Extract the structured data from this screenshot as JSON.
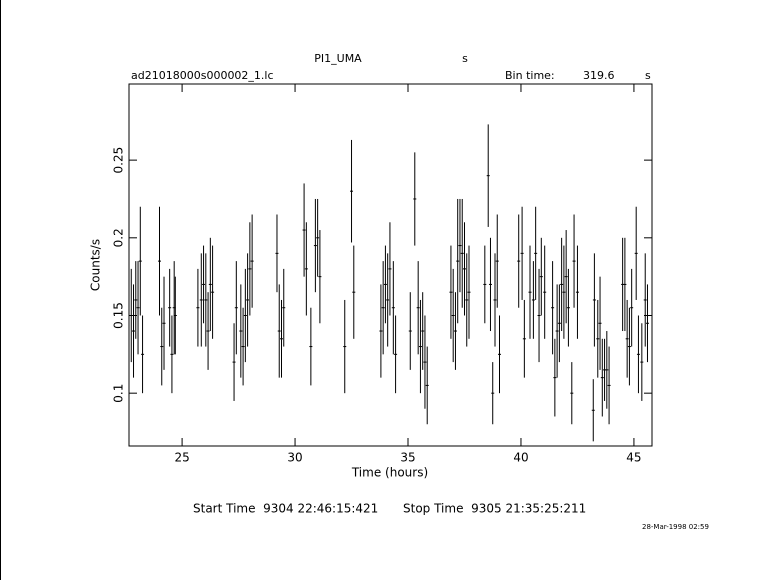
{
  "chart_data": {
    "type": "errorbar",
    "title": "PI1_UMA",
    "title_unit": "s",
    "file": "ad21018000s000002_1.lc",
    "bin_time_label": "Bin time:",
    "bin_time": 319.6,
    "bin_time_unit": "s",
    "xlabel": "Time (hours)",
    "ylabel": "Counts/s",
    "start_time": "Start Time  9304 22:46:15:421",
    "stop_time": "Stop Time  9305 21:35:25:211",
    "date": "28-Mar-1998 02:59",
    "color": "#000000",
    "xlim": [
      22.65,
      45.8
    ],
    "ylim": [
      0.066,
      0.299
    ],
    "xticks": [
      25,
      30,
      35,
      40,
      45
    ],
    "yticks": [
      0.1,
      0.15,
      0.2,
      0.25
    ],
    "x": [
      22.75,
      22.85,
      22.95,
      23.05,
      23.15,
      23.25,
      24.0,
      24.1,
      24.2,
      24.45,
      24.55,
      24.65,
      24.7,
      25.7,
      25.85,
      25.95,
      26.05,
      26.15,
      26.25,
      26.35,
      27.3,
      27.4,
      27.6,
      27.7,
      27.8,
      27.9,
      28.0,
      28.1,
      29.2,
      29.3,
      29.4,
      29.5,
      30.4,
      30.5,
      30.7,
      30.9,
      31.0,
      31.1,
      32.2,
      32.5,
      32.6,
      33.8,
      33.9,
      34.0,
      34.1,
      34.2,
      34.35,
      34.45,
      35.1,
      35.3,
      35.45,
      35.55,
      35.65,
      35.75,
      35.85,
      36.9,
      37.0,
      37.1,
      37.2,
      37.3,
      37.4,
      37.5,
      37.6,
      37.7,
      38.4,
      38.55,
      38.65,
      38.75,
      38.85,
      38.95,
      39.05,
      39.9,
      40.05,
      40.15,
      40.4,
      40.55,
      40.65,
      40.8,
      40.9,
      41.05,
      41.4,
      41.5,
      41.6,
      41.7,
      41.8,
      41.9,
      42.0,
      42.1,
      42.25,
      42.35,
      42.5,
      43.2,
      43.25,
      43.4,
      43.5,
      43.6,
      43.7,
      43.8,
      43.9,
      44.5,
      44.6,
      44.7,
      44.8,
      44.9,
      45.1,
      45.2,
      45.35,
      45.5,
      45.6
    ],
    "values": [
      0.15,
      0.14,
      0.16,
      0.155,
      0.185,
      0.125,
      0.185,
      0.13,
      0.145,
      0.155,
      0.125,
      0.155,
      0.15,
      0.155,
      0.16,
      0.17,
      0.16,
      0.14,
      0.17,
      0.165,
      0.12,
      0.155,
      0.14,
      0.13,
      0.15,
      0.16,
      0.18,
      0.185,
      0.19,
      0.14,
      0.135,
      0.155,
      0.205,
      0.18,
      0.13,
      0.195,
      0.2,
      0.175,
      0.13,
      0.23,
      0.165,
      0.14,
      0.155,
      0.17,
      0.16,
      0.18,
      0.155,
      0.125,
      0.14,
      0.225,
      0.155,
      0.13,
      0.14,
      0.12,
      0.105,
      0.165,
      0.15,
      0.14,
      0.185,
      0.195,
      0.19,
      0.18,
      0.16,
      0.165,
      0.17,
      0.24,
      0.17,
      0.1,
      0.16,
      0.185,
      0.125,
      0.185,
      0.19,
      0.135,
      0.165,
      0.16,
      0.19,
      0.15,
      0.175,
      0.165,
      0.155,
      0.11,
      0.14,
      0.145,
      0.17,
      0.165,
      0.175,
      0.155,
      0.1,
      0.185,
      0.165,
      0.089,
      0.16,
      0.135,
      0.145,
      0.11,
      0.115,
      0.115,
      0.105,
      0.17,
      0.17,
      0.135,
      0.13,
      0.155,
      0.19,
      0.125,
      0.12,
      0.16,
      0.145
    ],
    "errors": [
      0.03,
      0.03,
      0.025,
      0.03,
      0.035,
      0.025,
      0.035,
      0.025,
      0.03,
      0.025,
      0.025,
      0.03,
      0.025,
      0.025,
      0.03,
      0.025,
      0.03,
      0.025,
      0.03,
      0.03,
      0.025,
      0.03,
      0.03,
      0.025,
      0.03,
      0.03,
      0.03,
      0.03,
      0.025,
      0.03,
      0.025,
      0.025,
      0.03,
      0.03,
      0.025,
      0.03,
      0.025,
      0.03,
      0.03,
      0.033,
      0.03,
      0.03,
      0.03,
      0.025,
      0.03,
      0.03,
      0.03,
      0.025,
      0.025,
      0.03,
      0.03,
      0.03,
      0.025,
      0.03,
      0.025,
      0.03,
      0.03,
      0.025,
      0.04,
      0.03,
      0.035,
      0.03,
      0.03,
      0.03,
      0.025,
      0.033,
      0.03,
      0.02,
      0.03,
      0.03,
      0.025,
      0.03,
      0.03,
      0.025,
      0.03,
      0.025,
      0.03,
      0.03,
      0.025,
      0.03,
      0.03,
      0.025,
      0.03,
      0.025,
      0.03,
      0.03,
      0.03,
      0.025,
      0.02,
      0.03,
      0.03,
      0.02,
      0.03,
      0.025,
      0.03,
      0.025,
      0.02,
      0.025,
      0.025,
      0.03,
      0.03,
      0.025,
      0.025,
      0.025,
      0.03,
      0.025,
      0.025,
      0.03,
      0.025
    ]
  }
}
